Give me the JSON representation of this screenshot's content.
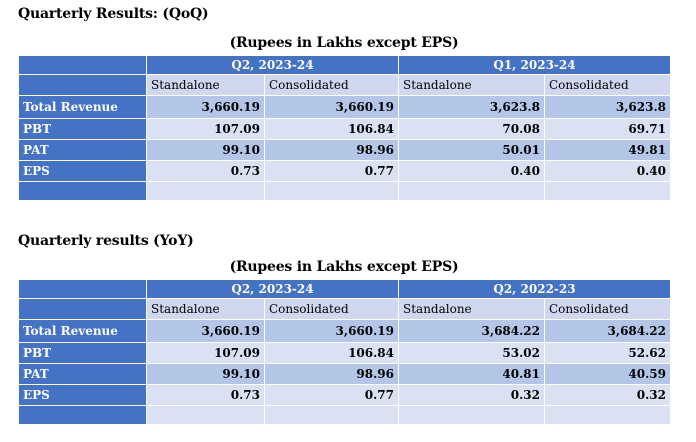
{
  "sections": [
    {
      "title": "Quarterly Results: (QoQ)",
      "units": "(Rupees in Lakhs except EPS)",
      "periods": [
        "Q2, 2023-24",
        "Q1, 2023-24"
      ],
      "subheaders": [
        "Standalone",
        "Consolidated",
        "Standalone",
        "Consolidated"
      ],
      "rows": [
        {
          "label": "Total Revenue",
          "values": [
            "3,660.19",
            "3,660.19",
            "3,623.8",
            "3,623.8"
          ]
        },
        {
          "label": "PBT",
          "values": [
            "107.09",
            "106.84",
            "70.08",
            "69.71"
          ]
        },
        {
          "label": "PAT",
          "values": [
            "99.10",
            "98.96",
            "50.01",
            "49.81"
          ]
        },
        {
          "label": "EPS",
          "values": [
            "0.73",
            "0.77",
            "0.40",
            "0.40"
          ]
        }
      ]
    },
    {
      "title": "Quarterly results (YoY)",
      "units": "(Rupees in Lakhs except EPS)",
      "periods": [
        "Q2, 2023-24",
        "Q2, 2022-23"
      ],
      "subheaders": [
        "Standalone",
        "Consolidated",
        "Standalone",
        "Consolidated"
      ],
      "rows": [
        {
          "label": "Total Revenue",
          "values": [
            "3,660.19",
            "3,660.19",
            "3,684.22",
            "3,684.22"
          ]
        },
        {
          "label": "PBT",
          "values": [
            "107.09",
            "106.84",
            "53.02",
            "52.62"
          ]
        },
        {
          "label": "PAT",
          "values": [
            "99.10",
            "98.96",
            "40.81",
            "40.59"
          ]
        },
        {
          "label": "EPS",
          "values": [
            "0.73",
            "0.77",
            "0.32",
            "0.32"
          ]
        }
      ]
    }
  ],
  "colors": {
    "header": "#4472c4",
    "row_dark": "#b4c6e7",
    "row_light": "#d9e1f2",
    "subheader": "#cfd8ee"
  }
}
